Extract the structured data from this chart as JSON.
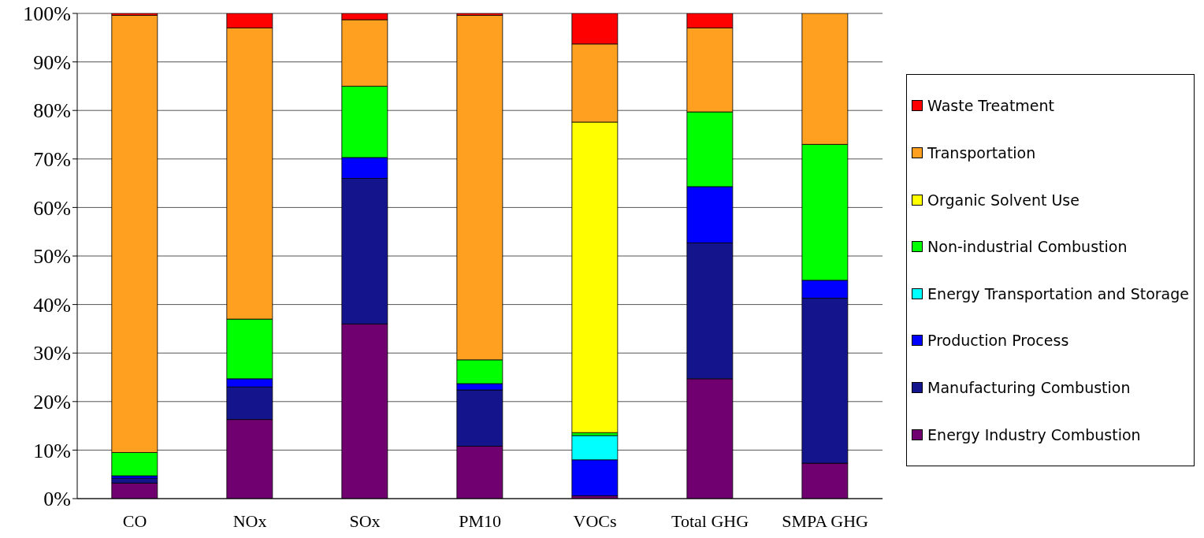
{
  "chart_data": {
    "type": "bar",
    "stacked": true,
    "categories": [
      "CO",
      "NOx",
      "SOx",
      "PM10",
      "VOCs",
      "Total GHG",
      "SMPA GHG"
    ],
    "series": [
      {
        "name": "Energy Industry Combustion",
        "color": "#700070",
        "values": [
          3.2,
          16.3,
          36.0,
          10.8,
          0.6,
          24.7,
          7.3
        ]
      },
      {
        "name": "Manufacturing Combustion",
        "color": "#14148c",
        "values": [
          1.0,
          6.7,
          30.0,
          11.6,
          0,
          28.0,
          34.0
        ]
      },
      {
        "name": "Production Process",
        "color": "#0000ff",
        "values": [
          0.5,
          1.7,
          4.3,
          1.3,
          7.4,
          11.6,
          3.7
        ]
      },
      {
        "name": "Energy Transportation and Storage",
        "color": "#00ffff",
        "values": [
          0,
          0,
          0,
          0,
          5.0,
          0,
          0
        ]
      },
      {
        "name": "Non-industrial Combustion",
        "color": "#00ff00",
        "values": [
          4.8,
          12.3,
          14.7,
          4.9,
          0.6,
          15.4,
          28.0
        ]
      },
      {
        "name": "Organic Solvent Use",
        "color": "#ffff00",
        "values": [
          0,
          0,
          0,
          0,
          64.0,
          0,
          0
        ]
      },
      {
        "name": "Transportation",
        "color": "#ffa020",
        "values": [
          90.1,
          60.0,
          13.7,
          71.0,
          16.1,
          17.3,
          27.0
        ]
      },
      {
        "name": "Waste Treatment",
        "color": "#ff0000",
        "values": [
          0.4,
          3.0,
          1.3,
          0.4,
          6.3,
          3.0,
          0
        ]
      }
    ],
    "ylim": [
      0,
      100
    ],
    "yticks": [
      {
        "value": 0,
        "label": "0%"
      },
      {
        "value": 10,
        "label": "10%"
      },
      {
        "value": 20,
        "label": "20%"
      },
      {
        "value": 30,
        "label": "30%"
      },
      {
        "value": 40,
        "label": "40%"
      },
      {
        "value": 50,
        "label": "50%"
      },
      {
        "value": 60,
        "label": "60%"
      },
      {
        "value": 70,
        "label": "70%"
      },
      {
        "value": 80,
        "label": "80%"
      },
      {
        "value": 90,
        "label": "90%"
      },
      {
        "value": 100,
        "label": "100%"
      }
    ],
    "grid": "y",
    "legend": "right"
  }
}
